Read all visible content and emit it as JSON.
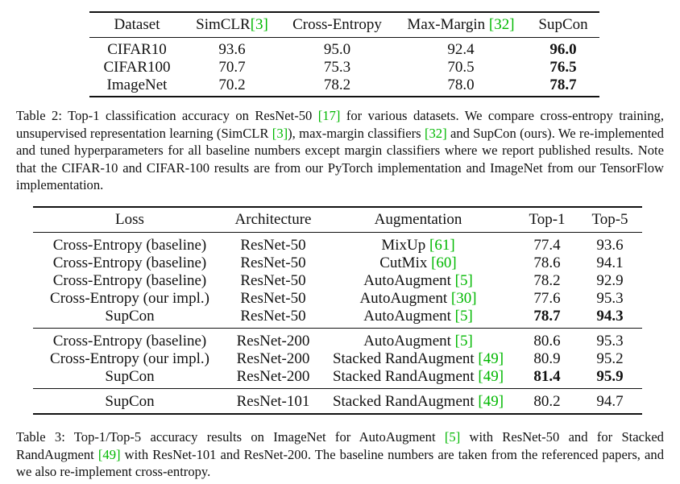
{
  "table2": {
    "headers": {
      "dataset": "Dataset",
      "simclr": "SimCLR",
      "simclr_cite": "[3]",
      "ce": "Cross-Entropy",
      "mm": "Max-Margin ",
      "mm_cite": "[32]",
      "supcon": "SupCon"
    },
    "rows": [
      {
        "dataset": "CIFAR10",
        "simclr": "93.6",
        "ce": "95.0",
        "mm": "92.4",
        "supcon": "96.0"
      },
      {
        "dataset": "CIFAR100",
        "simclr": "70.7",
        "ce": "75.3",
        "mm": "70.5",
        "supcon": "76.5"
      },
      {
        "dataset": "ImageNet",
        "simclr": "70.2",
        "ce": "78.2",
        "mm": "78.0",
        "supcon": "78.7"
      }
    ]
  },
  "caption2": {
    "p1": "Table 2:  Top-1 classification accuracy on ResNet-50 ",
    "c1": "[17]",
    "p2": " for various datasets.  We compare cross-entropy training, unsupervised representation learning (SimCLR ",
    "c2": "[3]",
    "p3": "), max-margin classifiers ",
    "c3": "[32]",
    "p4": " and SupCon (ours). We re-implemented and tuned hyperparameters for all baseline numbers except margin classifiers where we report published results. Note that the CIFAR-10 and CIFAR-100 results are from our PyTorch implementation and ImageNet from our TensorFlow implementation."
  },
  "table3": {
    "headers": {
      "loss": "Loss",
      "arch": "Architecture",
      "aug": "Augmentation",
      "top1": "Top-1",
      "top5": "Top-5"
    },
    "rows": [
      {
        "loss": "Cross-Entropy (baseline)",
        "arch": "ResNet-50",
        "aug": "MixUp ",
        "cite": "[61]",
        "top1": "77.4",
        "top5": "93.6"
      },
      {
        "loss": "Cross-Entropy (baseline)",
        "arch": "ResNet-50",
        "aug": "CutMix ",
        "cite": "[60]",
        "top1": "78.6",
        "top5": "94.1"
      },
      {
        "loss": "Cross-Entropy (baseline)",
        "arch": "ResNet-50",
        "aug": "AutoAugment ",
        "cite": "[5]",
        "top1": "78.2",
        "top5": "92.9"
      },
      {
        "loss": "Cross-Entropy (our impl.)",
        "arch": "ResNet-50",
        "aug": "AutoAugment ",
        "cite": "[30]",
        "top1": "77.6",
        "top5": "95.3"
      },
      {
        "loss": "SupCon",
        "arch": "ResNet-50",
        "aug": "AutoAugment ",
        "cite": "[5]",
        "top1": "78.7",
        "top5": "94.3"
      },
      {
        "loss": "Cross-Entropy (baseline)",
        "arch": "ResNet-200",
        "aug": "AutoAugment ",
        "cite": "[5]",
        "top1": "80.6",
        "top5": "95.3"
      },
      {
        "loss": "Cross-Entropy (our impl.)",
        "arch": "ResNet-200",
        "aug": "Stacked RandAugment ",
        "cite": "[49]",
        "top1": "80.9",
        "top5": "95.2"
      },
      {
        "loss": "SupCon",
        "arch": "ResNet-200",
        "aug": "Stacked RandAugment ",
        "cite": "[49]",
        "top1": "81.4",
        "top5": "95.9"
      },
      {
        "loss": "SupCon",
        "arch": "ResNet-101",
        "aug": "Stacked RandAugment ",
        "cite": "[49]",
        "top1": "80.2",
        "top5": "94.7"
      }
    ]
  },
  "caption3": {
    "p1": "Table 3:  Top-1/Top-5 accuracy results on ImageNet for AutoAugment ",
    "c1": "[5]",
    "p2": " with ResNet-50 and for Stacked RandAugment ",
    "c2": "[49]",
    "p3": " with ResNet-101 and ResNet-200.  The baseline numbers are taken from the referenced papers, and we also re-implement cross-entropy."
  }
}
